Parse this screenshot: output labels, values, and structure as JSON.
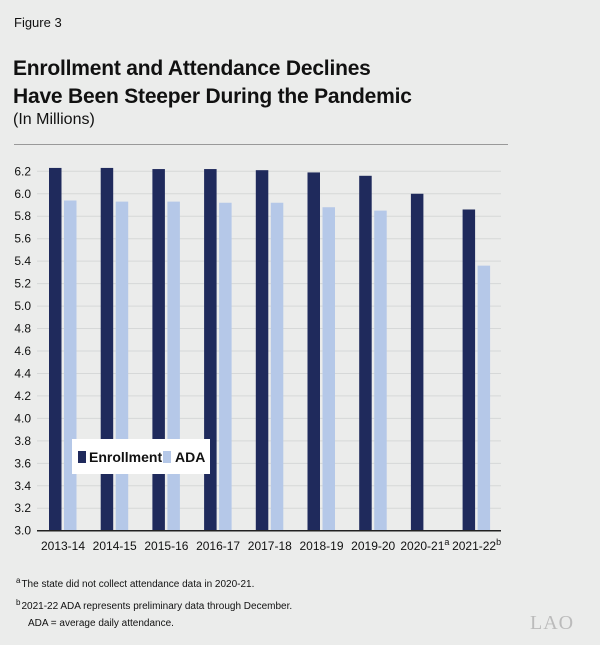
{
  "figure_label": "Figure 3",
  "title_line1": "Enrollment and Attendance Declines",
  "title_line2": "Have Been Steeper During the Pandemic",
  "subtitle": "(In Millions)",
  "chart_data": {
    "type": "bar",
    "categories": [
      "2013-14",
      "2014-15",
      "2015-16",
      "2016-17",
      "2017-18",
      "2018-19",
      "2019-20",
      "2020-21",
      "2021-22"
    ],
    "category_footnotes": [
      "",
      "",
      "",
      "",
      "",
      "",
      "",
      "a",
      "b"
    ],
    "series": [
      {
        "name": "Enrollment",
        "color": "#1f2a5c",
        "values": [
          6.23,
          6.23,
          6.22,
          6.22,
          6.21,
          6.19,
          6.16,
          6.0,
          5.86
        ]
      },
      {
        "name": "ADA",
        "color": "#b5c8e8",
        "values": [
          5.94,
          5.93,
          5.93,
          5.92,
          5.92,
          5.88,
          5.85,
          null,
          5.36
        ]
      }
    ],
    "ylim": [
      3.0,
      6.2
    ],
    "yticks": [
      "3.0",
      "3.2",
      "3.4",
      "3.6",
      "3.8",
      "4.0",
      "4.2",
      "4.4",
      "4.6",
      "4.8",
      "5.0",
      "5.2",
      "5.4",
      "5.6",
      "5.8",
      "6.0",
      "6.2"
    ],
    "grid": true,
    "legend_position": "lower-left"
  },
  "footnotes": [
    {
      "marker": "a",
      "text": "The state did not collect attendance data in 2020-21."
    },
    {
      "marker": "b",
      "text": "2021-22 ADA represents preliminary data through December."
    }
  ],
  "abbrev_note": "ADA = average daily attendance.",
  "logo_text": "LAO"
}
